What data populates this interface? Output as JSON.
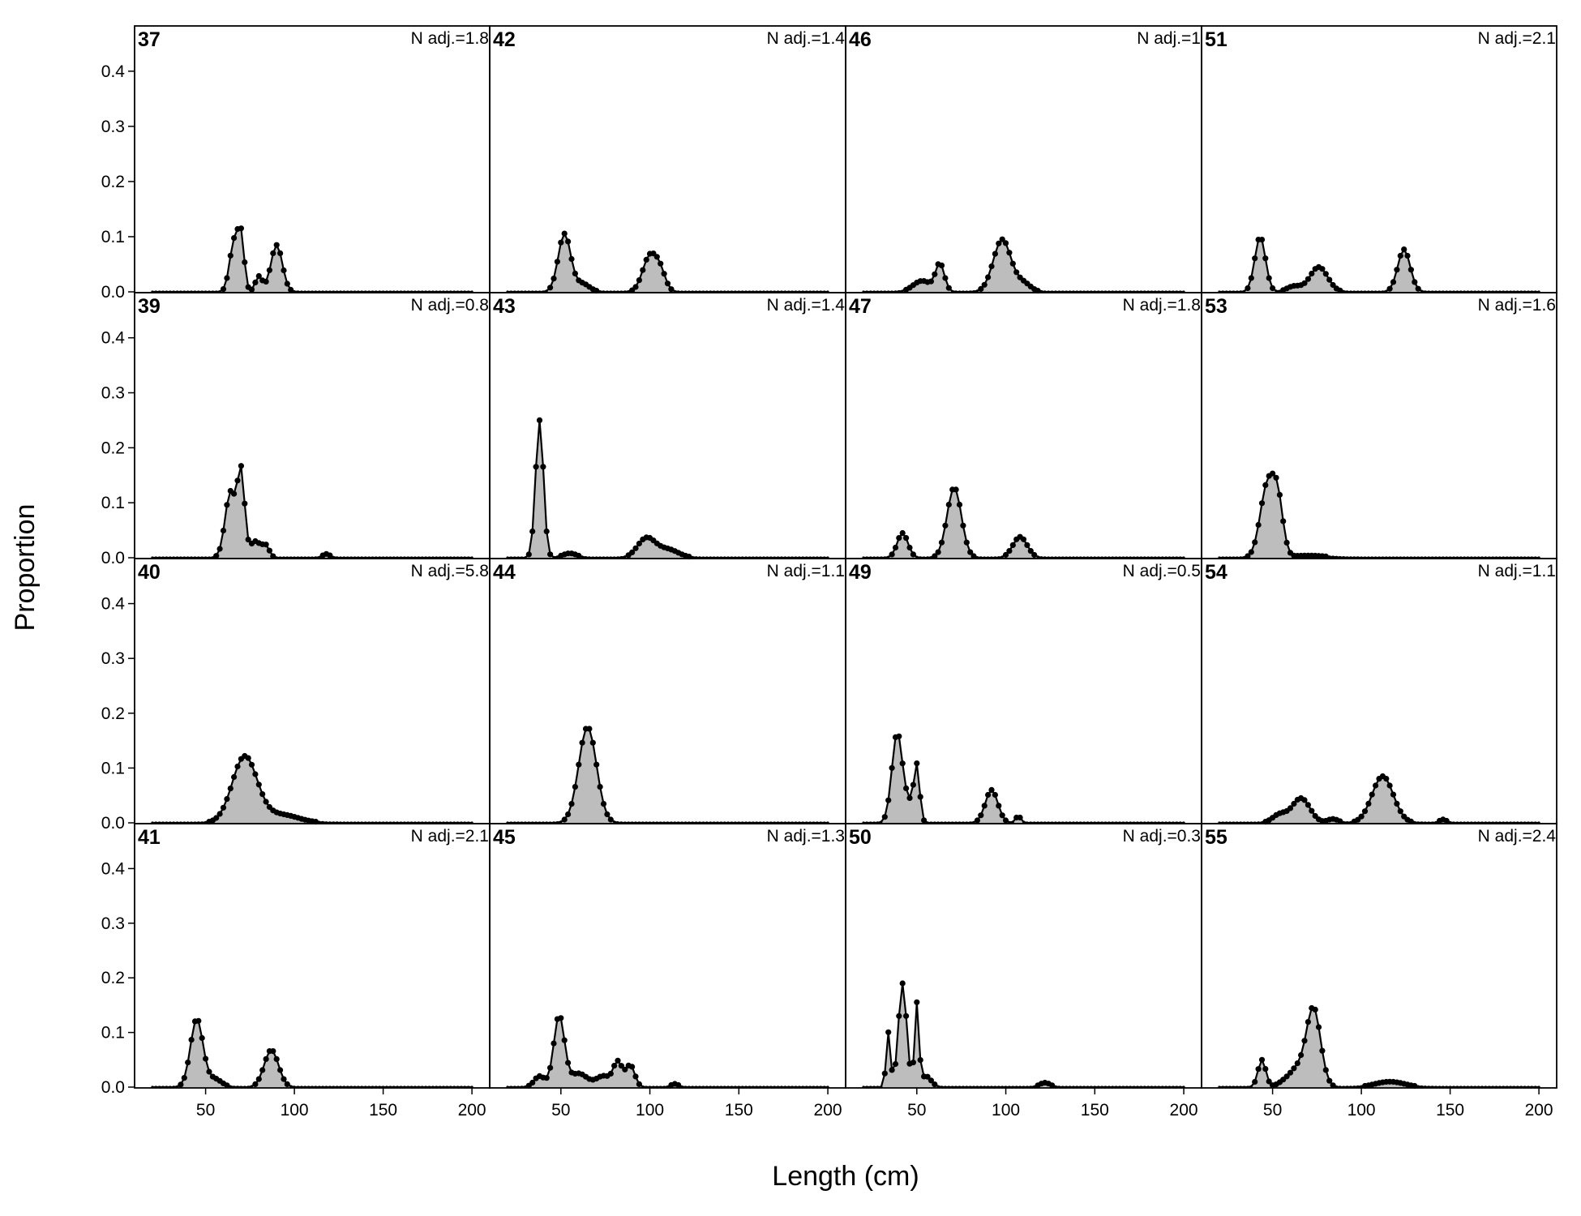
{
  "chart_data": {
    "type": "area",
    "xlabel": "Length (cm)",
    "ylabel": "Proportion",
    "xlim": [
      10,
      210
    ],
    "ylim": [
      0,
      0.46
    ],
    "xticks": [
      50,
      100,
      150,
      200
    ],
    "yticks": [
      0.0,
      0.1,
      0.2,
      0.3,
      0.4
    ],
    "fill_color": "#bdbdbd",
    "line_color": "#000000",
    "layout_order": "column-major",
    "rows": 4,
    "cols": 4,
    "panels": [
      {
        "id": "37",
        "nadj": "N adj.=1.8",
        "peaks": [
          [
            66,
            0.09,
            2.5
          ],
          [
            70,
            0.09,
            1.8
          ],
          [
            80,
            0.028,
            2
          ],
          [
            90,
            0.085,
            3.2
          ]
        ]
      },
      {
        "id": "39",
        "nadj": "N adj.=0.8",
        "peaks": [
          [
            64,
            0.12,
            3
          ],
          [
            70,
            0.15,
            2
          ],
          [
            78,
            0.03,
            3
          ],
          [
            84,
            0.02,
            2
          ],
          [
            118,
            0.007,
            2
          ]
        ]
      },
      {
        "id": "40",
        "nadj": "N adj.=5.8",
        "peaks": [
          [
            72,
            0.12,
            7
          ],
          [
            92,
            0.015,
            10
          ]
        ]
      },
      {
        "id": "41",
        "nadj": "N adj.=2.1",
        "peaks": [
          [
            45,
            0.125,
            3.5
          ],
          [
            55,
            0.015,
            4
          ],
          [
            87,
            0.068,
            4
          ]
        ]
      },
      {
        "id": "42",
        "nadj": "N adj.=1.4",
        "peaks": [
          [
            52,
            0.105,
            3.5
          ],
          [
            62,
            0.015,
            4
          ],
          [
            100,
            0.065,
            4
          ],
          [
            106,
            0.03,
            3
          ]
        ]
      },
      {
        "id": "43",
        "nadj": "N adj.=1.4",
        "peaks": [
          [
            38,
            0.25,
            2.2
          ],
          [
            55,
            0.008,
            4
          ],
          [
            98,
            0.035,
            5
          ],
          [
            110,
            0.015,
            6
          ]
        ]
      },
      {
        "id": "44",
        "nadj": "N adj.=1.1",
        "peaks": [
          [
            65,
            0.175,
            5
          ]
        ]
      },
      {
        "id": "45",
        "nadj": "N adj.=1.3",
        "peaks": [
          [
            38,
            0.02,
            3
          ],
          [
            49,
            0.13,
            3
          ],
          [
            60,
            0.025,
            5
          ],
          [
            74,
            0.02,
            4
          ],
          [
            82,
            0.045,
            2.5
          ],
          [
            89,
            0.04,
            2.5
          ],
          [
            114,
            0.006,
            2
          ]
        ]
      },
      {
        "id": "46",
        "nadj": "N adj.=1",
        "peaks": [
          [
            53,
            0.02,
            5
          ],
          [
            63,
            0.05,
            2.5
          ],
          [
            98,
            0.095,
            5
          ],
          [
            110,
            0.015,
            4
          ]
        ]
      },
      {
        "id": "47",
        "nadj": "N adj.=1.8",
        "peaks": [
          [
            42,
            0.045,
            3
          ],
          [
            71,
            0.128,
            4
          ],
          [
            108,
            0.038,
            4
          ]
        ]
      },
      {
        "id": "49",
        "nadj": "N adj.=0.5",
        "peaks": [
          [
            39,
            0.165,
            3
          ],
          [
            46,
            0.03,
            2.5
          ],
          [
            50,
            0.1,
            1.6
          ],
          [
            92,
            0.06,
            3.5
          ],
          [
            107,
            0.012,
            1.5
          ]
        ]
      },
      {
        "id": "50",
        "nadj": "N adj.=0.3",
        "peaks": [
          [
            34,
            0.1,
            1.2
          ],
          [
            42,
            0.19,
            2.3
          ],
          [
            50,
            0.15,
            1.2
          ],
          [
            55,
            0.02,
            3
          ],
          [
            122,
            0.008,
            3
          ]
        ]
      },
      {
        "id": "51",
        "nadj": "N adj.=2.1",
        "peaks": [
          [
            43,
            0.1,
            3
          ],
          [
            62,
            0.01,
            4
          ],
          [
            76,
            0.045,
            5
          ],
          [
            124,
            0.077,
            3.5
          ]
        ]
      },
      {
        "id": "53",
        "nadj": "N adj.=1.6",
        "peaks": [
          [
            47,
            0.13,
            4
          ],
          [
            53,
            0.09,
            3
          ],
          [
            70,
            0.004,
            10
          ]
        ]
      },
      {
        "id": "54",
        "nadj": "N adj.=1.1",
        "peaks": [
          [
            54,
            0.015,
            4
          ],
          [
            66,
            0.045,
            5
          ],
          [
            84,
            0.007,
            3
          ],
          [
            112,
            0.085,
            6
          ],
          [
            146,
            0.006,
            2
          ]
        ]
      },
      {
        "id": "55",
        "nadj": "N adj.=2.4",
        "peaks": [
          [
            44,
            0.05,
            2.2
          ],
          [
            57,
            0.01,
            4
          ],
          [
            73,
            0.145,
            4
          ],
          [
            64,
            0.03,
            4
          ],
          [
            116,
            0.01,
            8
          ]
        ]
      }
    ]
  }
}
